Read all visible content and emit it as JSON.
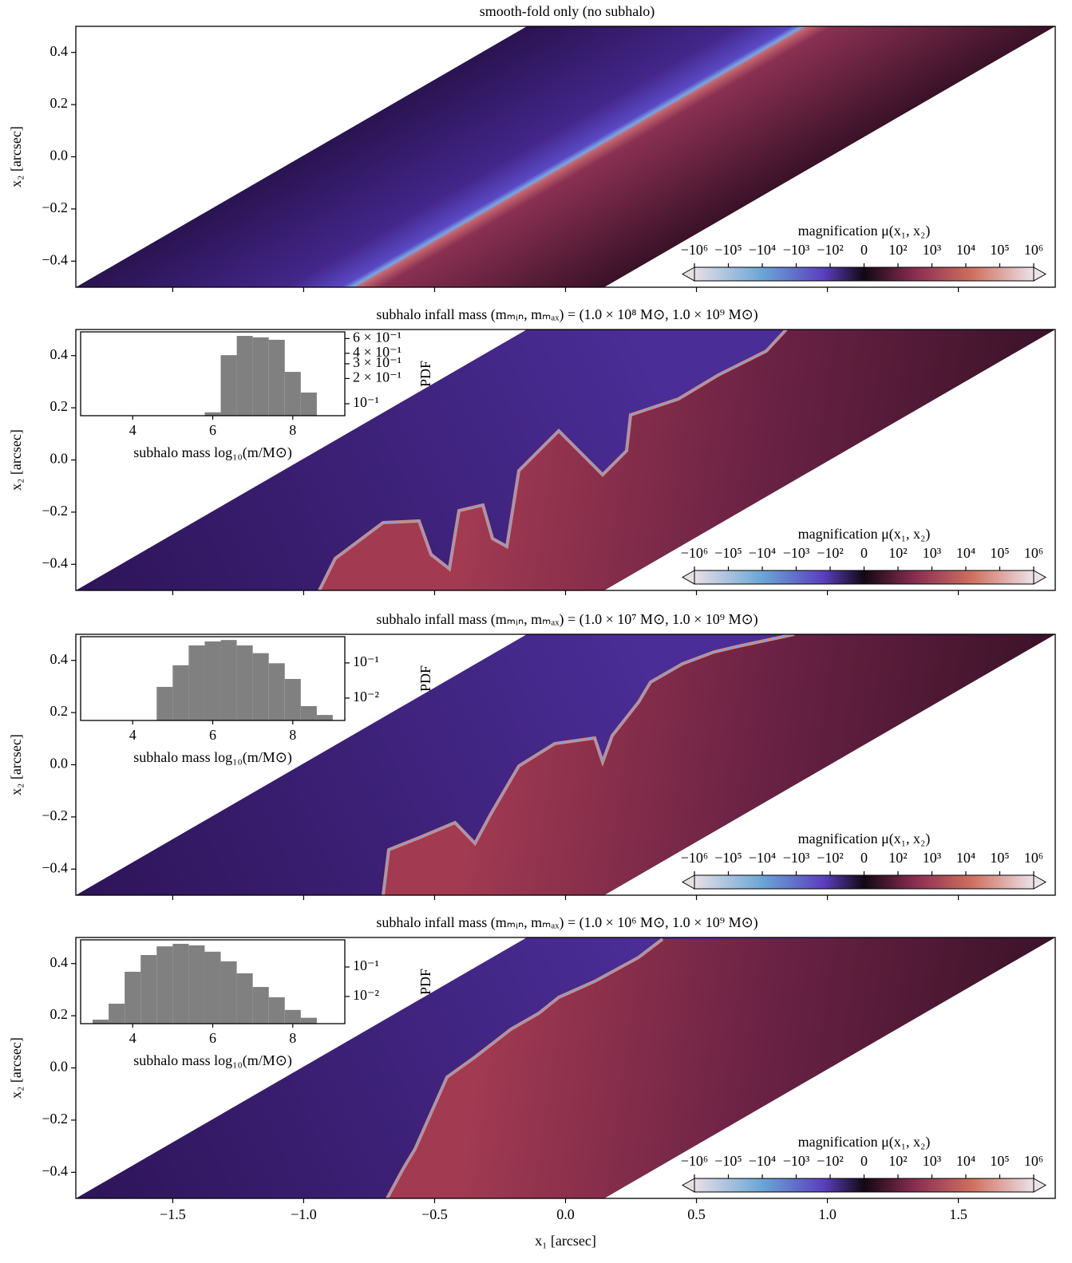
{
  "chart_data": [
    {
      "type": "image",
      "title": "smooth-fold only (no subhalo)",
      "ylabel": "x₂ [arcsec]",
      "xlim": [
        -1.87,
        1.87
      ],
      "ylim": [
        -0.5,
        0.5
      ],
      "yticks": [
        {
          "value": 0.4,
          "label": "0.4"
        },
        {
          "value": 0.2,
          "label": "0.2"
        },
        {
          "value": 0,
          "label": "0.0"
        },
        {
          "value": -0.2,
          "label": "−0.2"
        },
        {
          "value": -0.4,
          "label": "−0.4"
        }
      ],
      "colorbar": {
        "label": "magnification μ(x₁, x₂)",
        "scale": "symlog",
        "lim": [
          -1000000,
          1000000
        ],
        "ticks": [
          {
            "value": -1000000,
            "label": "−10⁶"
          },
          {
            "value": -100000,
            "label": "−10⁵"
          },
          {
            "value": -10000,
            "label": "−10⁴"
          },
          {
            "value": -1000,
            "label": "−10³"
          },
          {
            "value": -100,
            "label": "−10²"
          },
          0,
          {
            "value": 100,
            "label": "10²"
          },
          {
            "value": 1000,
            "label": "10³"
          },
          {
            "value": 10000,
            "label": "10⁴"
          },
          {
            "value": 100000,
            "label": "10⁵"
          },
          {
            "value": 1000000,
            "label": "10⁶"
          }
        ]
      }
    },
    {
      "type": "image",
      "title": "subhalo infall mass (mₘᵢₙ, mₘₐₓ) = (1.0 × 10⁸ M⊙, 1.0 × 10⁹ M⊙)",
      "ylabel": "x₂ [arcsec]",
      "xlim": [
        -1.87,
        1.87
      ],
      "ylim": [
        -0.5,
        0.5
      ],
      "yticks": [
        {
          "value": 0.4,
          "label": "0.4"
        },
        {
          "value": 0.2,
          "label": "0.2"
        },
        {
          "value": 0,
          "label": "0.0"
        },
        {
          "value": -0.2,
          "label": "−0.2"
        },
        {
          "value": -0.4,
          "label": "−0.4"
        }
      ],
      "colorbar": {
        "label": "magnification μ(x₁, x₂)",
        "scale": "symlog",
        "lim": [
          -1000000,
          1000000
        ],
        "ticks": [
          {
            "value": -1000000,
            "label": "−10⁶"
          },
          {
            "value": -100000,
            "label": "−10⁵"
          },
          {
            "value": -10000,
            "label": "−10⁴"
          },
          {
            "value": -1000,
            "label": "−10³"
          },
          {
            "value": -100,
            "label": "−10²"
          },
          0,
          {
            "value": 100,
            "label": "10²"
          },
          {
            "value": 1000,
            "label": "10³"
          },
          {
            "value": 10000,
            "label": "10⁴"
          },
          {
            "value": 100000,
            "label": "10⁵"
          },
          {
            "value": 1000000,
            "label": "10⁶"
          }
        ]
      },
      "inset": {
        "type": "histogram",
        "xlabel": "subhalo mass log₁₀(m/M⊙)",
        "ylabel": "PDF",
        "color": "#808080",
        "log_y": true,
        "xlim": [
          2.7,
          9.3
        ],
        "ylim": [
          0.072,
          0.72
        ],
        "xticks": [
          4,
          6,
          8
        ],
        "yticks": [
          {
            "value": 0.6,
            "label": "6 × 10⁻¹"
          },
          {
            "value": 0.4,
            "label": "4 × 10⁻¹"
          },
          {
            "value": 0.3,
            "label": "3 × 10⁻¹"
          },
          {
            "value": 0.2,
            "label": "2 × 10⁻¹"
          },
          {
            "value": 0.1,
            "label": "10⁻¹"
          }
        ],
        "bins": [
          5.8,
          6.2,
          6.6,
          7.0,
          7.4,
          7.8,
          8.2,
          8.6
        ],
        "values": [
          0.079,
          0.38,
          0.645,
          0.62,
          0.58,
          0.24,
          0.136
        ]
      }
    },
    {
      "type": "image",
      "title": "subhalo infall mass (mₘᵢₙ, mₘₐₓ) = (1.0 × 10⁷ M⊙, 1.0 × 10⁹ M⊙)",
      "ylabel": "x₂ [arcsec]",
      "xlim": [
        -1.87,
        1.87
      ],
      "ylim": [
        -0.5,
        0.5
      ],
      "yticks": [
        {
          "value": 0.4,
          "label": "0.4"
        },
        {
          "value": 0.2,
          "label": "0.2"
        },
        {
          "value": 0,
          "label": "0.0"
        },
        {
          "value": -0.2,
          "label": "−0.2"
        },
        {
          "value": -0.4,
          "label": "−0.4"
        }
      ],
      "colorbar": {
        "label": "magnification μ(x₁, x₂)",
        "scale": "symlog",
        "lim": [
          -1000000,
          1000000
        ],
        "ticks": [
          {
            "value": -1000000,
            "label": "−10⁶"
          },
          {
            "value": -100000,
            "label": "−10⁵"
          },
          {
            "value": -10000,
            "label": "−10⁴"
          },
          {
            "value": -1000,
            "label": "−10³"
          },
          {
            "value": -100,
            "label": "−10²"
          },
          0,
          {
            "value": 100,
            "label": "10²"
          },
          {
            "value": 1000,
            "label": "10³"
          },
          {
            "value": 10000,
            "label": "10⁴"
          },
          {
            "value": 100000,
            "label": "10⁵"
          },
          {
            "value": 1000000,
            "label": "10⁶"
          }
        ]
      },
      "inset": {
        "type": "histogram",
        "xlabel": "subhalo mass log₁₀(m/M⊙)",
        "ylabel": "PDF",
        "color": "#808080",
        "log_y": true,
        "xlim": [
          2.7,
          9.3
        ],
        "ylim": [
          0.0023,
          0.56
        ],
        "xticks": [
          4,
          6,
          8
        ],
        "yticks": [
          {
            "value": 0.1,
            "label": "10⁻¹"
          },
          {
            "value": 0.01,
            "label": "10⁻²"
          }
        ],
        "bins": [
          4.6,
          5.0,
          5.4,
          5.8,
          6.2,
          6.6,
          7.0,
          7.4,
          7.8,
          8.2,
          8.6,
          9.0
        ],
        "values": [
          0.0208,
          0.086,
          0.316,
          0.41,
          0.45,
          0.316,
          0.19,
          0.098,
          0.035,
          0.0059,
          0.0033
        ]
      }
    },
    {
      "type": "image",
      "title": "subhalo infall mass (mₘᵢₙ, mₘₐₓ) = (1.0 × 10⁶ M⊙, 1.0 × 10⁹ M⊙)",
      "ylabel": "x₂ [arcsec]",
      "xlabel": "x₁ [arcsec]",
      "xlim": [
        -1.87,
        1.87
      ],
      "ylim": [
        -0.5,
        0.5
      ],
      "xticks": [
        {
          "value": -1.5,
          "label": "−1.5"
        },
        {
          "value": -1,
          "label": "−1.0"
        },
        {
          "value": -0.5,
          "label": "−0.5"
        },
        {
          "value": 0,
          "label": "0.0"
        },
        0.5,
        {
          "value": 1,
          "label": "1.0"
        },
        1.5
      ],
      "yticks": [
        {
          "value": 0.4,
          "label": "0.4"
        },
        {
          "value": 0.2,
          "label": "0.2"
        },
        {
          "value": 0,
          "label": "0.0"
        },
        {
          "value": -0.2,
          "label": "−0.2"
        },
        {
          "value": -0.4,
          "label": "−0.4"
        }
      ],
      "colorbar": {
        "label": "magnification μ(x₁, x₂)",
        "scale": "symlog",
        "lim": [
          -1000000,
          1000000
        ],
        "ticks": [
          {
            "value": -1000000,
            "label": "−10⁶"
          },
          {
            "value": -100000,
            "label": "−10⁵"
          },
          {
            "value": -10000,
            "label": "−10⁴"
          },
          {
            "value": -1000,
            "label": "−10³"
          },
          {
            "value": -100,
            "label": "−10²"
          },
          0,
          {
            "value": 100,
            "label": "10²"
          },
          {
            "value": 1000,
            "label": "10³"
          },
          {
            "value": 10000,
            "label": "10⁴"
          },
          {
            "value": 100000,
            "label": "10⁵"
          },
          {
            "value": 1000000,
            "label": "10⁶"
          }
        ]
      },
      "inset": {
        "type": "histogram",
        "xlabel": "subhalo mass log₁₀(m/M⊙)",
        "ylabel": "PDF",
        "color": "#808080",
        "log_y": true,
        "xlim": [
          2.7,
          9.3
        ],
        "ylim": [
          0.0012,
          0.83
        ],
        "xticks": [
          4,
          6,
          8
        ],
        "yticks": [
          {
            "value": 0.1,
            "label": "10⁻¹"
          },
          {
            "value": 0.01,
            "label": "10⁻²"
          }
        ],
        "bins": [
          3.0,
          3.4,
          3.8,
          4.2,
          4.6,
          5.0,
          5.4,
          5.8,
          6.2,
          6.6,
          7.0,
          7.4,
          7.8,
          8.2,
          8.6
        ],
        "values": [
          0.00164,
          0.0057,
          0.069,
          0.254,
          0.5,
          0.61,
          0.54,
          0.33,
          0.155,
          0.061,
          0.021,
          0.0094,
          0.0035,
          0.0019
        ]
      }
    }
  ]
}
